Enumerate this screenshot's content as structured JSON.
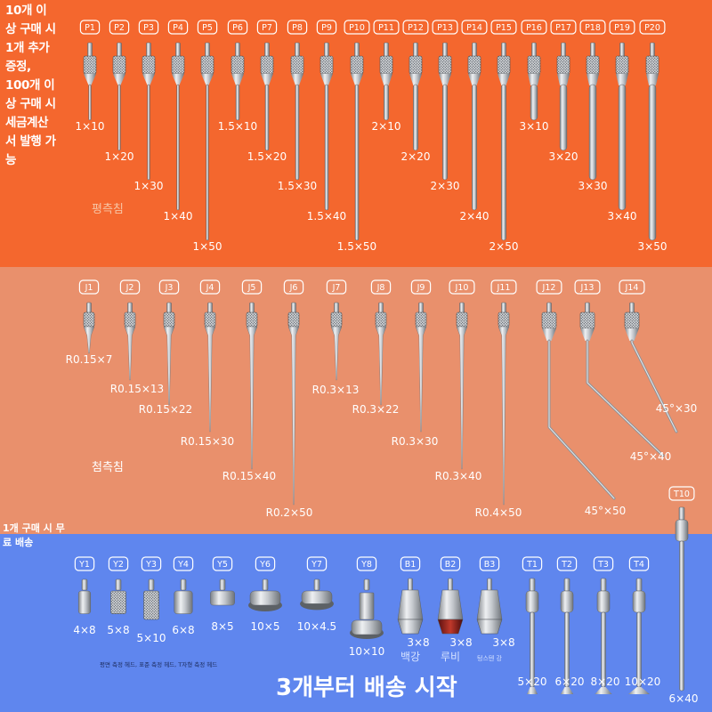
{
  "side_text": {
    "promo": "10개 이상 구매 시 1개 추가 증정, 100개 이상 구매 시 세금계산서 발행 가능",
    "free_shipping": "1개 구매 시 무료 배송",
    "bottom_banner": "3개부터 배송 시작"
  },
  "section_labels": {
    "flat": "평측침",
    "tip": "첨측침",
    "heads": "평면 측정 헤드, 표준 측정 헤드, T자형 측정 헤드"
  },
  "colors": {
    "top_band": "#f4672e",
    "middle_band": "#e9906c",
    "bottom_band": "#5f86ee",
    "metal": "#c9ccd1"
  },
  "p_series": [
    {
      "code": "P1",
      "size": "1×10"
    },
    {
      "code": "P2",
      "size": "1×20"
    },
    {
      "code": "P3",
      "size": "1×30"
    },
    {
      "code": "P4",
      "size": "1×40"
    },
    {
      "code": "P5",
      "size": "1×50"
    },
    {
      "code": "P6",
      "size": "1.5×10"
    },
    {
      "code": "P7",
      "size": "1.5×20"
    },
    {
      "code": "P8",
      "size": "1.5×30"
    },
    {
      "code": "P9",
      "size": "1.5×40"
    },
    {
      "code": "P10",
      "size": "1.5×50"
    },
    {
      "code": "P11",
      "size": "2×10"
    },
    {
      "code": "P12",
      "size": "2×20"
    },
    {
      "code": "P13",
      "size": "2×30"
    },
    {
      "code": "P14",
      "size": "2×40"
    },
    {
      "code": "P15",
      "size": "2×50"
    },
    {
      "code": "P16",
      "size": "3×10"
    },
    {
      "code": "P17",
      "size": "3×20"
    },
    {
      "code": "P18",
      "size": "3×30"
    },
    {
      "code": "P19",
      "size": "3×40"
    },
    {
      "code": "P20",
      "size": "3×50"
    }
  ],
  "j_series": [
    {
      "code": "J1",
      "size": "R0.15×7"
    },
    {
      "code": "J2",
      "size": "R0.15×13"
    },
    {
      "code": "J3",
      "size": "R0.15×22"
    },
    {
      "code": "J4",
      "size": "R0.15×30"
    },
    {
      "code": "J5",
      "size": "R0.15×40"
    },
    {
      "code": "J6",
      "size": "R0.2×50"
    },
    {
      "code": "J7",
      "size": "R0.3×13"
    },
    {
      "code": "J8",
      "size": "R0.3×22"
    },
    {
      "code": "J9",
      "size": "R0.3×30"
    },
    {
      "code": "J10",
      "size": "R0.3×40"
    },
    {
      "code": "J11",
      "size": "R0.4×50"
    },
    {
      "code": "J12",
      "size": "45°×50"
    },
    {
      "code": "J13",
      "size": "45°×40"
    },
    {
      "code": "J14",
      "size": "45°×30"
    }
  ],
  "head_series": [
    {
      "code": "Y1",
      "size": "4×8"
    },
    {
      "code": "Y2",
      "size": "5×8"
    },
    {
      "code": "Y3",
      "size": "5×10"
    },
    {
      "code": "Y4",
      "size": "6×8"
    },
    {
      "code": "Y5",
      "size": "8×5"
    },
    {
      "code": "Y6",
      "size": "10×5"
    },
    {
      "code": "Y7",
      "size": "10×4.5"
    },
    {
      "code": "Y8",
      "size": "10×10"
    },
    {
      "code": "B1",
      "size": "3×8",
      "material": "백강"
    },
    {
      "code": "B2",
      "size": "3×8",
      "material": "루비"
    },
    {
      "code": "B3",
      "size": "3×8",
      "material": "텅스텐 강"
    },
    {
      "code": "T1",
      "size": "5×20"
    },
    {
      "code": "T2",
      "size": "6×20"
    },
    {
      "code": "T3",
      "size": "8×20"
    },
    {
      "code": "T4",
      "size": "10×20"
    },
    {
      "code": "T10",
      "size": "6×40"
    }
  ]
}
